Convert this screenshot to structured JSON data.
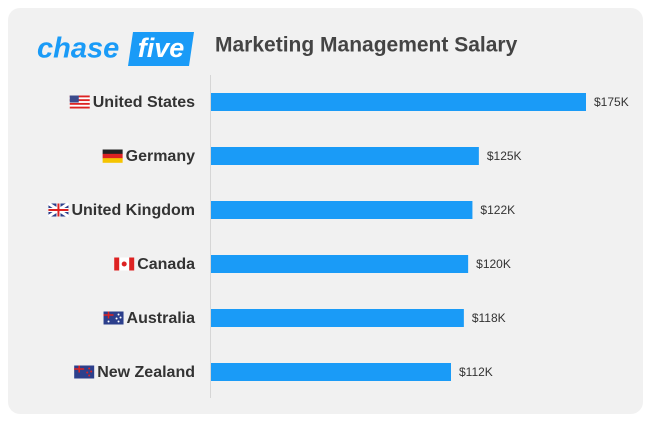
{
  "brand": {
    "part1": "chase",
    "part2": "five"
  },
  "chart_data": {
    "type": "hbar",
    "title": "Marketing Management Salary",
    "categories": [
      "United States",
      "Germany",
      "United Kingdom",
      "Canada",
      "Australia",
      "New Zealand"
    ],
    "values": [
      175,
      125,
      122,
      120,
      118,
      112
    ],
    "value_labels": [
      "$175K",
      "$125K",
      "$122K",
      "$120K",
      "$118K",
      "$112K"
    ],
    "color": "#1a9bf7"
  }
}
